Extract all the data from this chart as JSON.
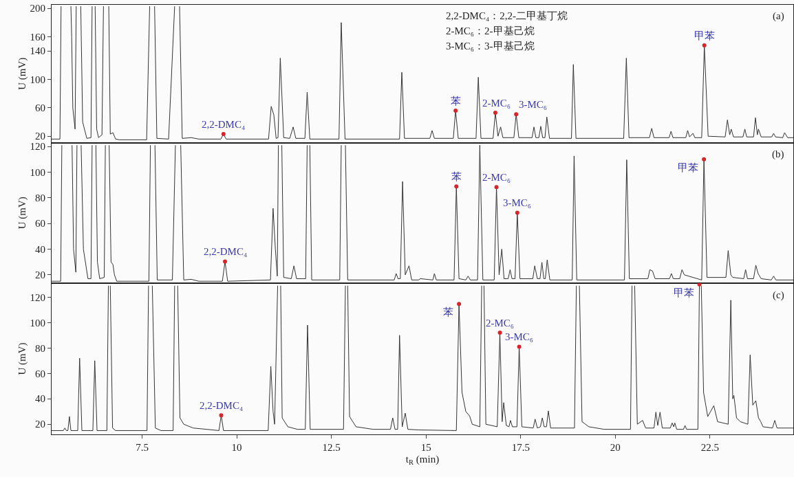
{
  "chart_data": [
    {
      "type": "line",
      "ylabel": "U (mV)",
      "xlim": [
        5.11,
        24.7
      ],
      "ylim": [
        11,
        205
      ],
      "yticks": [
        20,
        60,
        100,
        140,
        160,
        200
      ],
      "tick_labels": "y",
      "grid": false,
      "annotations": [
        "2,2-DMC₄：2,2-二甲基丁烷",
        "2-MC₆：2-甲基己烷",
        "3-MC₆：3-甲基己烷",
        "(a)",
        {
          "text": "2,2-DMC₄",
          "x": 9.65,
          "y": 23
        },
        {
          "text": "苯",
          "x": 15.78,
          "y": 56
        },
        {
          "text": "2-MC₆",
          "x": 16.83,
          "y": 53
        },
        {
          "text": "3-MC₆",
          "x": 17.38,
          "y": 51
        },
        {
          "text": "甲苯",
          "x": 22.35,
          "y": 148
        }
      ],
      "series": [
        {
          "color": "#333333",
          "x": [
            5.11,
            5.33,
            5.36,
            5.5,
            5.62,
            5.64,
            5.67,
            5.73,
            5.76,
            5.82,
            5.88,
            5.93,
            6.04,
            6.15,
            6.18,
            6.22,
            6.26,
            6.3,
            6.35,
            6.44,
            6.48,
            6.55,
            6.62,
            6.66,
            6.73,
            6.8,
            6.9,
            7.62,
            7.7,
            7.77,
            7.83,
            7.89,
            8.2,
            8.36,
            8.43,
            8.49,
            8.56,
            8.8,
            9.0,
            9.58,
            9.65,
            9.72,
            10.84,
            10.91,
            10.98,
            11.04,
            11.09,
            11.15,
            11.24,
            11.4,
            11.49,
            11.56,
            11.8,
            11.86,
            11.93,
            12.7,
            12.76,
            12.86,
            14.3,
            14.36,
            14.43,
            15.1,
            15.16,
            15.22,
            15.72,
            15.78,
            15.85,
            16.32,
            16.38,
            16.45,
            16.77,
            16.83,
            16.9,
            16.97,
            17.03,
            17.32,
            17.38,
            17.45,
            17.8,
            17.85,
            17.9,
            17.98,
            18.03,
            18.08,
            18.14,
            18.19,
            18.26,
            18.84,
            18.89,
            18.96,
            20.22,
            20.29,
            20.36,
            20.9,
            20.96,
            21.02,
            21.42,
            21.47,
            21.52,
            21.86,
            21.91,
            21.96,
            22.05,
            22.1,
            22.28,
            22.35,
            22.45,
            22.9,
            22.96,
            23.02,
            23.06,
            23.12,
            23.37,
            23.42,
            23.47,
            23.65,
            23.7,
            23.75,
            23.78,
            23.85,
            24.13,
            24.18,
            24.23,
            24.42,
            24.47,
            24.55,
            24.7
          ],
          "values": [
            16,
            16,
            203,
            null,
            203,
            160,
            60,
            30,
            203,
            null,
            203,
            40,
            17,
            18,
            203,
            null,
            203,
            30,
            18,
            22,
            203,
            null,
            203,
            23,
            25,
            16,
            15,
            15,
            203,
            null,
            203,
            17,
            16,
            203,
            null,
            203,
            17,
            18,
            16,
            16,
            23,
            16,
            16,
            62,
            50,
            17,
            18,
            130,
            18,
            17,
            33,
            17,
            17,
            82,
            16,
            16,
            180,
            16,
            16,
            110,
            17,
            17,
            28,
            17,
            17,
            56,
            17,
            17,
            103,
            17,
            17,
            53,
            20,
            33,
            18,
            18,
            51,
            18,
            18,
            33,
            18,
            18,
            34,
            18,
            18,
            47,
            17,
            17,
            121,
            17,
            17,
            130,
            18,
            18,
            31,
            18,
            18,
            27,
            18,
            18,
            28,
            19,
            24,
            18,
            18,
            148,
            20,
            19,
            43,
            22,
            30,
            19,
            19,
            30,
            19,
            19,
            46,
            22,
            30,
            19,
            19,
            24,
            19,
            18,
            25,
            18,
            18
          ]
        },
        {
          "type": "scatter",
          "marker": "circle",
          "color": "#d7262b",
          "x": [
            9.65,
            15.78,
            16.83,
            17.38,
            22.35
          ],
          "values": [
            23,
            56,
            53,
            51,
            148
          ]
        }
      ]
    },
    {
      "type": "line",
      "ylabel": "U (mV)",
      "xlim": [
        5.11,
        24.7
      ],
      "ylim": [
        13.5,
        123
      ],
      "yticks": [
        20,
        40,
        60,
        80,
        100,
        120
      ],
      "tick_labels": "y",
      "grid": false,
      "annotations": [
        "(b)",
        {
          "text": "2,2-DMC₄",
          "x": 9.69,
          "y": 30.4
        },
        {
          "text": "苯",
          "x": 15.8,
          "y": 88.8
        },
        {
          "text": "2-MC₆",
          "x": 16.86,
          "y": 88.3
        },
        {
          "text": "3-MC₆",
          "x": 17.41,
          "y": 68.4
        },
        {
          "text": "甲苯",
          "x": 22.34,
          "y": 110
        }
      ],
      "series": [
        {
          "color": "#333333",
          "x": [
            5.11,
            5.35,
            5.38,
            5.5,
            5.65,
            5.69,
            5.75,
            5.78,
            5.84,
            5.89,
            5.95,
            6.07,
            6.15,
            6.18,
            6.23,
            6.28,
            6.32,
            6.38,
            6.5,
            6.53,
            6.58,
            6.63,
            6.68,
            6.73,
            6.77,
            6.83,
            7.68,
            7.72,
            7.78,
            7.84,
            7.9,
            8.3,
            8.38,
            8.45,
            8.52,
            8.6,
            8.8,
            9.0,
            9.62,
            9.69,
            9.76,
            10.89,
            10.96,
            11.02,
            11.07,
            11.1,
            11.15,
            11.19,
            11.24,
            11.44,
            11.51,
            11.58,
            11.82,
            11.86,
            11.9,
            11.93,
            11.98,
            12.72,
            12.76,
            12.82,
            12.87,
            12.93,
            14.16,
            14.21,
            14.26,
            14.32,
            14.38,
            14.45,
            14.55,
            14.62,
            14.8,
            14.85,
            15.18,
            15.22,
            15.27,
            15.74,
            15.8,
            15.87,
            16.05,
            16.11,
            16.17,
            16.36,
            16.42,
            16.5,
            16.8,
            16.86,
            16.93,
            17.0,
            17.06,
            17.17,
            17.22,
            17.27,
            17.35,
            17.41,
            17.48,
            17.82,
            17.87,
            17.94,
            18.01,
            18.06,
            18.11,
            18.15,
            18.2,
            18.27,
            18.86,
            18.91,
            18.98,
            20.24,
            20.3,
            20.37,
            20.86,
            20.91,
            20.98,
            21.05,
            21.43,
            21.48,
            21.53,
            21.7,
            21.76,
            21.82,
            22.28,
            22.34,
            22.42,
            22.92,
            22.98,
            23.05,
            23.1,
            23.39,
            23.44,
            23.49,
            23.65,
            23.71,
            23.77,
            23.85,
            24.12,
            24.18,
            24.24,
            24.7
          ],
          "values": [
            15,
            15,
            121,
            null,
            121,
            40,
            22,
            121,
            null,
            121,
            40,
            17,
            17,
            121,
            null,
            121,
            30,
            17,
            18,
            121,
            null,
            121,
            30,
            28,
            20,
            15,
            15,
            121,
            null,
            121,
            16,
            16,
            121,
            null,
            121,
            16,
            16.5,
            15,
            15,
            30.4,
            15,
            16,
            71.8,
            40,
            19,
            121,
            null,
            121,
            18,
            17,
            27,
            17,
            17,
            121,
            null,
            121,
            16,
            16,
            121,
            null,
            121,
            16,
            16,
            21,
            17,
            17,
            92.7,
            20,
            27,
            16,
            16,
            17,
            16,
            21,
            16,
            16,
            88.8,
            17,
            16,
            19,
            16,
            16,
            121,
            16,
            16,
            88.3,
            20,
            40,
            17,
            17,
            24,
            17,
            17,
            68.4,
            17,
            17,
            27,
            17,
            17,
            29.7,
            17,
            17,
            31.6,
            16,
            16,
            112.6,
            16,
            16,
            109.6,
            17,
            17,
            24,
            23,
            17,
            17,
            21,
            17,
            17,
            24,
            20,
            16,
            110,
            18,
            18,
            38.9,
            20,
            18,
            17,
            24,
            17,
            17,
            27.5,
            21,
            17,
            16,
            19,
            16,
            16
          ]
        },
        {
          "type": "scatter",
          "marker": "circle",
          "color": "#d7262b",
          "x": [
            9.69,
            15.8,
            16.86,
            17.41,
            22.34
          ],
          "values": [
            30.4,
            88.8,
            88.3,
            68.4,
            110
          ]
        }
      ]
    },
    {
      "type": "line",
      "xlabel": "t$_{R}$ (min)",
      "ylabel": "U (mV)",
      "xlim": [
        5.11,
        24.7
      ],
      "xticks": [
        7.5,
        10,
        12.5,
        15,
        17.5,
        20,
        22.5
      ],
      "ylim": [
        12,
        131
      ],
      "yticks": [
        20,
        40,
        60,
        80,
        100,
        120
      ],
      "grid": false,
      "annotations": [
        "(c)",
        {
          "text": "2,2-DMC₄",
          "x": 9.59,
          "y": 27
        },
        {
          "text": "苯",
          "x": 15.87,
          "y": 114.6
        },
        {
          "text": "2-MC₆",
          "x": 16.95,
          "y": 92
        },
        {
          "text": "3-MC₆",
          "x": 17.46,
          "y": 81
        },
        {
          "text": "甲苯",
          "x": 22.22,
          "y": 130
        }
      ],
      "series": [
        {
          "color": "#333333",
          "x": [
            5.11,
            5.42,
            5.46,
            5.5,
            5.54,
            5.58,
            5.62,
            5.8,
            5.85,
            5.91,
            6.2,
            6.25,
            6.31,
            6.57,
            6.61,
            6.63,
            6.66,
            6.72,
            6.8,
            7.63,
            7.67,
            7.72,
            7.77,
            7.85,
            8.0,
            8.32,
            8.36,
            8.4,
            8.44,
            8.5,
            8.6,
            8.85,
            9.2,
            9.53,
            9.59,
            9.65,
            10.83,
            10.9,
            10.96,
            11.0,
            11.08,
            11.12,
            11.16,
            11.2,
            11.35,
            11.6,
            11.81,
            11.87,
            11.94,
            12.82,
            12.87,
            12.9,
            12.93,
            12.98,
            13.15,
            13.6,
            14.06,
            14.12,
            14.18,
            14.25,
            14.3,
            14.37,
            14.45,
            14.52,
            14.8,
            15.8,
            15.87,
            15.95,
            16.05,
            16.15,
            16.22,
            16.42,
            16.47,
            16.5,
            16.53,
            16.58,
            16.88,
            16.95,
            17.01,
            17.05,
            17.12,
            17.19,
            17.23,
            17.28,
            17.4,
            17.46,
            17.53,
            17.83,
            17.88,
            17.94,
            18.02,
            18.07,
            18.12,
            18.18,
            18.23,
            18.29,
            18.92,
            18.97,
            19.01,
            19.05,
            19.12,
            19.3,
            19.7,
            20.4,
            20.44,
            20.48,
            20.51,
            20.58,
            20.72,
            20.8,
            21.02,
            21.07,
            21.12,
            21.18,
            21.24,
            21.45,
            21.5,
            21.54,
            21.57,
            21.62,
            21.8,
            21.84,
            21.88,
            22.18,
            22.22,
            22.25,
            22.27,
            22.33,
            22.44,
            22.6,
            22.7,
            22.98,
            23.05,
            23.1,
            23.13,
            23.2,
            23.3,
            23.5,
            23.56,
            23.63,
            23.71,
            23.78,
            23.84,
            23.9,
            24.15,
            24.21,
            24.27,
            24.7
          ],
          "values": [
            15,
            15,
            17,
            15,
            15,
            26,
            15,
            15,
            72,
            15,
            15,
            70,
            15,
            15,
            129,
            null,
            129,
            17,
            15,
            15,
            129,
            null,
            129,
            17,
            15,
            15,
            129,
            null,
            129,
            25,
            20,
            17,
            16,
            15,
            27,
            15,
            15,
            65.5,
            30,
            20,
            129,
            null,
            129,
            25,
            18,
            16,
            16,
            98,
            16,
            16,
            129,
            null,
            129,
            26,
            18,
            16,
            16,
            25,
            16,
            16,
            90,
            18,
            28.7,
            16,
            15.5,
            15,
            114.6,
            45,
            30,
            26.5,
            20,
            18,
            129,
            null,
            129,
            20,
            18,
            92,
            22,
            37,
            19,
            18,
            23,
            18,
            18,
            81,
            18,
            17,
            24,
            17,
            18,
            25,
            18,
            18,
            30.5,
            17,
            17,
            129,
            null,
            129,
            22,
            18,
            16,
            16,
            129,
            null,
            129,
            20,
            23,
            17,
            17,
            29.5,
            19,
            29.5,
            17,
            17,
            21,
            18,
            21,
            16,
            16,
            19,
            16,
            16,
            129,
            null,
            129,
            45,
            26,
            34.6,
            22,
            20,
            117.6,
            40,
            42.7,
            25,
            22,
            20,
            74.6,
            35,
            38.5,
            25,
            22,
            18,
            17,
            23,
            17,
            17
          ]
        },
        {
          "type": "scatter",
          "marker": "circle",
          "color": "#d7262b",
          "x": [
            9.59,
            15.87,
            16.95,
            17.46,
            22.22
          ],
          "values": [
            27,
            114.6,
            92,
            81,
            130
          ]
        }
      ]
    }
  ]
}
